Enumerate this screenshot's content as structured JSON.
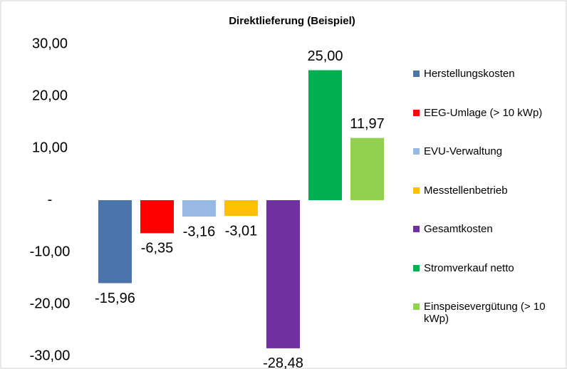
{
  "chart_data": {
    "type": "bar",
    "title": "Direktlieferung (Beispiel)",
    "series": [
      {
        "name": "Herstellungskosten",
        "color": "#4a74aa",
        "values": [
          -15.96
        ],
        "value_labels": [
          "-15,96"
        ]
      },
      {
        "name": "EEG-Umlage (> 10 kWp)",
        "color": "#ff0000",
        "values": [
          -6.35
        ],
        "value_labels": [
          "-6,35"
        ]
      },
      {
        "name": "EVU-Verwaltung",
        "color": "#98b9e3",
        "values": [
          -3.16
        ],
        "value_labels": [
          "-3,16"
        ]
      },
      {
        "name": "Messtellenbetrieb",
        "color": "#ffc000",
        "values": [
          -3.01
        ],
        "value_labels": [
          "-3,01"
        ]
      },
      {
        "name": "Gesamtkosten",
        "color": "#7030a0",
        "values": [
          -28.48
        ],
        "value_labels": [
          "-28,48"
        ]
      },
      {
        "name": "Stromverkauf netto",
        "color": "#00b050",
        "values": [
          25.0
        ],
        "value_labels": [
          "25,00"
        ]
      },
      {
        "name": "Einspeisevergütung (> 10 kWp)",
        "color": "#92d050",
        "values": [
          11.97
        ],
        "value_labels": [
          "11,97"
        ]
      }
    ],
    "ylim": [
      -30,
      30
    ],
    "yticks": [
      {
        "value": -30,
        "label": "-30,00"
      },
      {
        "value": -20,
        "label": "-20,00"
      },
      {
        "value": -10,
        "label": "-10,00"
      },
      {
        "value": 0,
        "label": "-"
      },
      {
        "value": 10,
        "label": "10,00"
      },
      {
        "value": 20,
        "label": "20,00"
      },
      {
        "value": 30,
        "label": "30,00"
      }
    ],
    "grid": false,
    "legend": "right"
  }
}
